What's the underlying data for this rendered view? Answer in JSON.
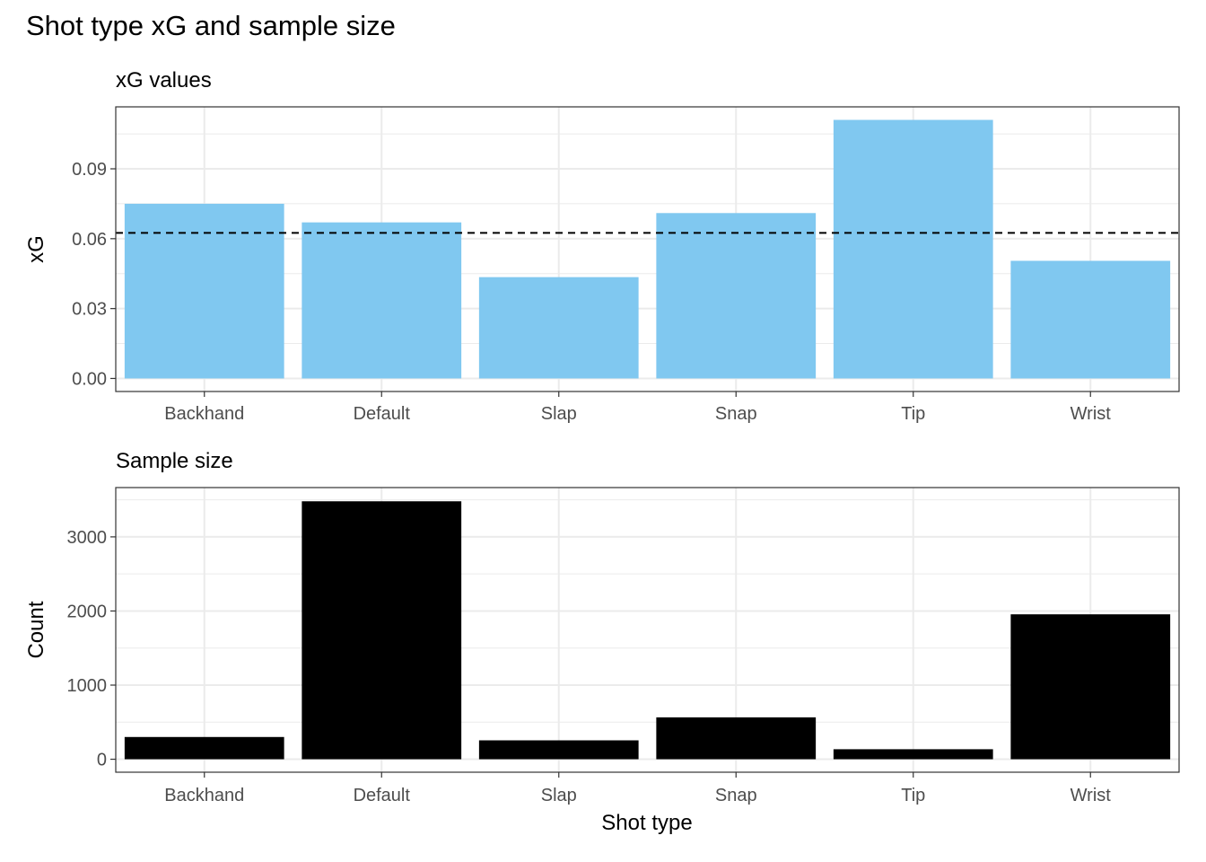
{
  "title": "Shot type xG and sample size",
  "xlabel": "Shot type",
  "colors": {
    "xg_bar": "#80c8f0",
    "count_bar": "#000000",
    "reference_line": "#000000",
    "grid": "#ebebeb",
    "panel_border": "#333333"
  },
  "chart_data": [
    {
      "type": "bar",
      "title": "xG values",
      "xlabel": "",
      "ylabel": "xG",
      "categories": [
        "Backhand",
        "Default",
        "Slap",
        "Snap",
        "Tip",
        "Wrist"
      ],
      "values": [
        0.075,
        0.067,
        0.0435,
        0.071,
        0.111,
        0.0505
      ],
      "yticks": [
        0.0,
        0.03,
        0.06,
        0.09
      ],
      "ytick_labels": [
        "0.00",
        "0.03",
        "0.06",
        "0.09"
      ],
      "ylim": [
        -0.0056,
        0.1166
      ],
      "reference_line": {
        "value": 0.0625,
        "style": "dashed"
      },
      "grid": true
    },
    {
      "type": "bar",
      "title": "Sample size",
      "xlabel": "Shot type",
      "ylabel": "Count",
      "categories": [
        "Backhand",
        "Default",
        "Slap",
        "Snap",
        "Tip",
        "Wrist"
      ],
      "values": [
        300,
        3480,
        255,
        565,
        135,
        1955
      ],
      "yticks": [
        0,
        1000,
        2000,
        3000
      ],
      "ytick_labels": [
        "0",
        "1000",
        "2000",
        "3000"
      ],
      "ylim": [
        -175,
        3665
      ],
      "grid": true
    }
  ]
}
